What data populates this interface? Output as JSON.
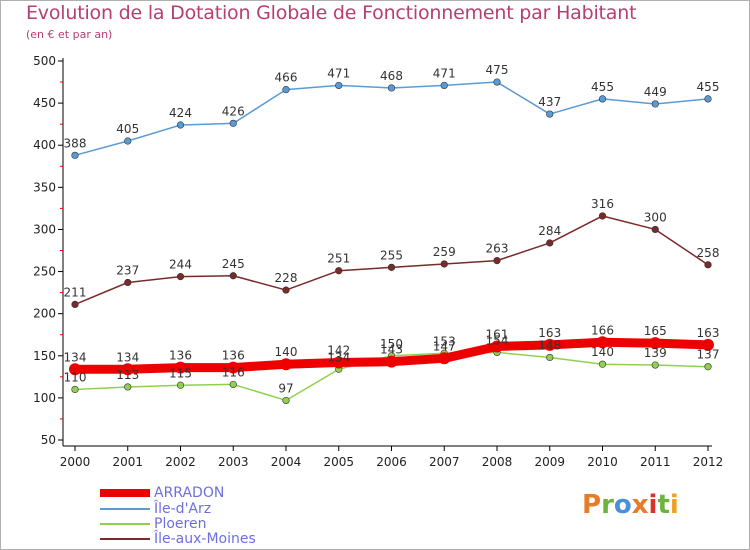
{
  "title": "Evolution de la Dotation Globale de Fonctionnement par Habitant",
  "subtitle": "(en € et par an)",
  "logo_text": "Proxiti",
  "chart_data": {
    "type": "line",
    "title": "Evolution de la Dotation Globale de Fonctionnement par Habitant",
    "subtitle": "(en € et par an)",
    "xlabel": "",
    "ylabel": "",
    "ylim": [
      50,
      500
    ],
    "yticks": [
      50,
      100,
      150,
      200,
      250,
      300,
      350,
      400,
      450,
      500
    ],
    "x": [
      "2000",
      "2001",
      "2002",
      "2003",
      "2004",
      "2005",
      "2006",
      "2007",
      "2008",
      "2009",
      "2010",
      "2011",
      "2012"
    ],
    "grid": false,
    "legend_position": "bottom-left",
    "series": [
      {
        "name": "ARRADON",
        "color": "#ee0000",
        "values": [
          134,
          134,
          136,
          136,
          140,
          142,
          143,
          147,
          161,
          163,
          166,
          165,
          163
        ]
      },
      {
        "name": "Île-d'Arz",
        "color": "#5b9bd5",
        "values": [
          388,
          405,
          424,
          426,
          466,
          471,
          468,
          471,
          475,
          437,
          455,
          449,
          455
        ]
      },
      {
        "name": "Ploeren",
        "color": "#8fd14f",
        "values": [
          110,
          113,
          115,
          116,
          97,
          134,
          150,
          153,
          154,
          148,
          140,
          139,
          137
        ]
      },
      {
        "name": "Île-aux-Moines",
        "color": "#7a2a2a",
        "values": [
          211,
          237,
          244,
          245,
          228,
          251,
          255,
          259,
          263,
          284,
          316,
          300,
          258
        ]
      }
    ]
  }
}
